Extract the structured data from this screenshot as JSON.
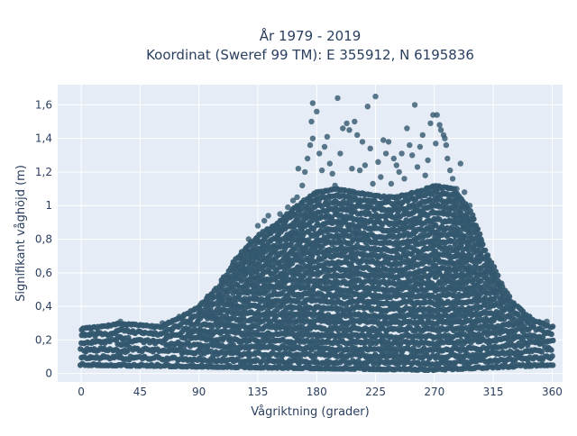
{
  "chart_data": {
    "type": "scatter",
    "title": "År 1979 - 2019",
    "subtitle": "Koordinat (Sweref 99 TM): E 355912, N 6195836",
    "xlabel": "Vågriktning (grader)",
    "ylabel": "Signifikant våghöjd (m)",
    "xlim": [
      -18,
      368
    ],
    "ylim": [
      -0.05,
      1.72
    ],
    "x_ticks": [
      0,
      45,
      90,
      135,
      180,
      225,
      270,
      315,
      360
    ],
    "x_tick_labels": [
      "0",
      "45",
      "90",
      "135",
      "180",
      "225",
      "270",
      "315",
      "360"
    ],
    "y_ticks": [
      0,
      0.2,
      0.4,
      0.6,
      0.8,
      1.0,
      1.2,
      1.4,
      1.6
    ],
    "y_tick_labels": [
      "0",
      "0,2",
      "0,4",
      "0,6",
      "0,8",
      "1",
      "1,2",
      "1,4",
      "1,6"
    ],
    "grid": true,
    "colors": {
      "marker": "#33576e",
      "plot_bg": "#e5ecf6",
      "grid": "#ffffff",
      "text": "#2a3f5f"
    },
    "series": [
      {
        "marker_color": "#33576e",
        "upper_envelope": [
          [
            0,
            0.27
          ],
          [
            15,
            0.28
          ],
          [
            30,
            0.3
          ],
          [
            45,
            0.29
          ],
          [
            60,
            0.28
          ],
          [
            75,
            0.33
          ],
          [
            90,
            0.4
          ],
          [
            105,
            0.52
          ],
          [
            120,
            0.7
          ],
          [
            135,
            0.82
          ],
          [
            150,
            0.9
          ],
          [
            165,
            1.0
          ],
          [
            180,
            1.08
          ],
          [
            195,
            1.1
          ],
          [
            210,
            1.08
          ],
          [
            225,
            1.06
          ],
          [
            240,
            1.05
          ],
          [
            255,
            1.08
          ],
          [
            270,
            1.12
          ],
          [
            285,
            1.1
          ],
          [
            295,
            1.0
          ],
          [
            300,
            0.92
          ],
          [
            310,
            0.72
          ],
          [
            320,
            0.55
          ],
          [
            330,
            0.42
          ],
          [
            345,
            0.32
          ],
          [
            360,
            0.28
          ]
        ],
        "lower_envelope": [
          [
            0,
            0.05
          ],
          [
            90,
            0.04
          ],
          [
            180,
            0.03
          ],
          [
            270,
            0.02
          ],
          [
            360,
            0.05
          ]
        ],
        "outliers": [
          [
            30,
            0.31
          ],
          [
            62,
            0.3
          ],
          [
            75,
            0.34
          ],
          [
            92,
            0.42
          ],
          [
            100,
            0.46
          ],
          [
            110,
            0.53
          ],
          [
            118,
            0.56
          ],
          [
            125,
            0.62
          ],
          [
            128,
            0.8
          ],
          [
            132,
            0.73
          ],
          [
            135,
            0.88
          ],
          [
            140,
            0.91
          ],
          [
            143,
            0.94
          ],
          [
            148,
            0.88
          ],
          [
            152,
            0.95
          ],
          [
            158,
            0.99
          ],
          [
            162,
            1.03
          ],
          [
            165,
            1.05
          ],
          [
            166,
            1.22
          ],
          [
            169,
            1.12
          ],
          [
            171,
            1.2
          ],
          [
            173,
            1.28
          ],
          [
            175,
            1.36
          ],
          [
            176,
            1.5
          ],
          [
            177,
            1.61
          ],
          [
            177,
            1.4
          ],
          [
            180,
            1.56
          ],
          [
            182,
            1.31
          ],
          [
            184,
            1.21
          ],
          [
            186,
            1.35
          ],
          [
            188,
            1.41
          ],
          [
            190,
            1.25
          ],
          [
            192,
            1.19
          ],
          [
            194,
            1.12
          ],
          [
            196,
            1.64
          ],
          [
            198,
            1.31
          ],
          [
            200,
            1.46
          ],
          [
            203,
            1.49
          ],
          [
            205,
            1.45
          ],
          [
            207,
            1.22
          ],
          [
            209,
            1.5
          ],
          [
            211,
            1.42
          ],
          [
            213,
            1.21
          ],
          [
            215,
            1.38
          ],
          [
            217,
            1.24
          ],
          [
            219,
            1.59
          ],
          [
            221,
            1.34
          ],
          [
            223,
            1.13
          ],
          [
            225,
            1.65
          ],
          [
            227,
            1.26
          ],
          [
            229,
            1.17
          ],
          [
            231,
            1.39
          ],
          [
            233,
            1.31
          ],
          [
            235,
            1.38
          ],
          [
            237,
            1.13
          ],
          [
            239,
            1.28
          ],
          [
            241,
            1.24
          ],
          [
            243,
            1.2
          ],
          [
            245,
            1.31
          ],
          [
            247,
            1.16
          ],
          [
            249,
            1.46
          ],
          [
            251,
            1.36
          ],
          [
            253,
            1.3
          ],
          [
            255,
            1.6
          ],
          [
            257,
            1.23
          ],
          [
            259,
            1.35
          ],
          [
            261,
            1.42
          ],
          [
            263,
            1.18
          ],
          [
            265,
            1.27
          ],
          [
            267,
            1.49
          ],
          [
            269,
            1.54
          ],
          [
            271,
            1.37
          ],
          [
            272,
            1.54
          ],
          [
            274,
            1.48
          ],
          [
            275,
            1.45
          ],
          [
            277,
            1.42
          ],
          [
            278,
            1.4
          ],
          [
            279,
            1.36
          ],
          [
            280,
            1.28
          ],
          [
            282,
            1.21
          ],
          [
            284,
            1.16
          ],
          [
            287,
            1.1
          ],
          [
            290,
            1.25
          ],
          [
            293,
            1.08
          ],
          [
            297,
            1.0
          ],
          [
            300,
            0.92
          ],
          [
            303,
            0.86
          ],
          [
            306,
            0.79
          ],
          [
            310,
            0.7
          ],
          [
            313,
            0.62
          ],
          [
            318,
            0.51
          ],
          [
            322,
            0.46
          ],
          [
            326,
            0.44
          ],
          [
            331,
            0.41
          ],
          [
            337,
            0.34
          ],
          [
            344,
            0.3
          ],
          [
            352,
            0.29
          ],
          [
            356,
            0.31
          ]
        ]
      }
    ]
  }
}
